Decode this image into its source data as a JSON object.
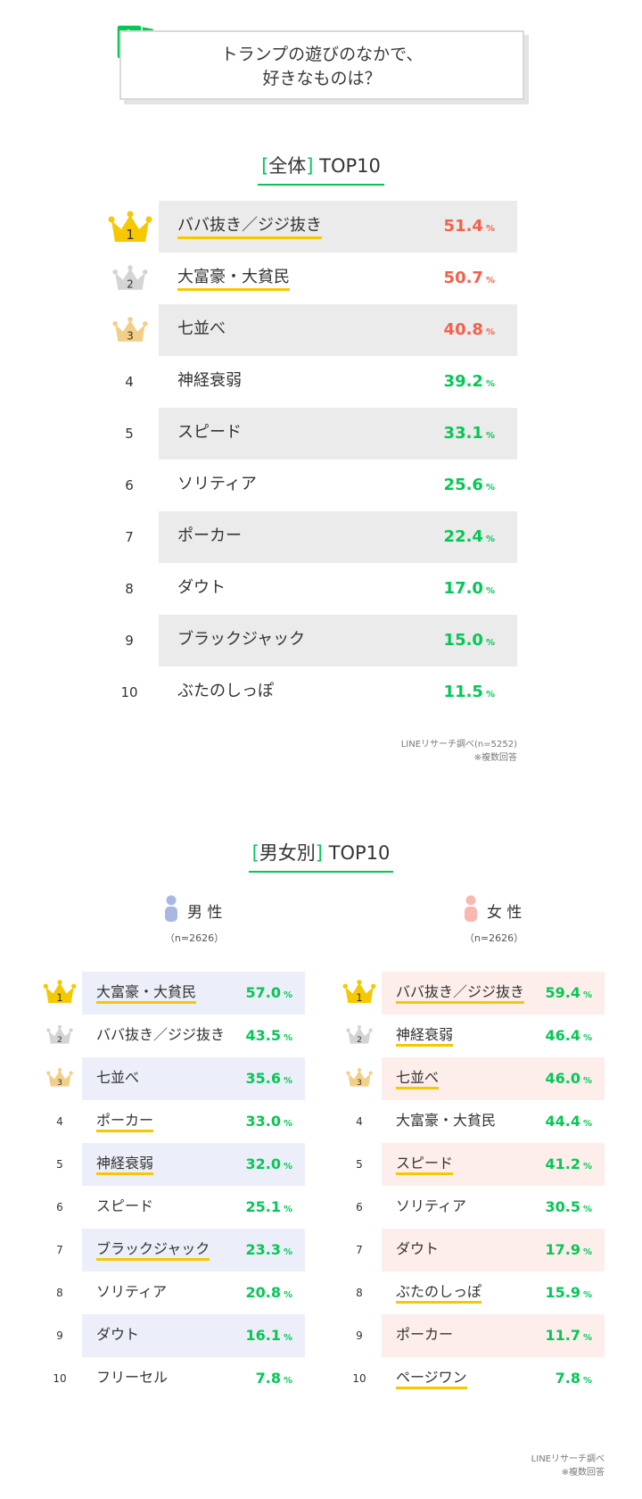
{
  "header": {
    "line1": "トランプの遊びのなかで、",
    "line2": "好きなものは？"
  },
  "colors": {
    "accent": "#06c755",
    "top3": "#f4604b",
    "gold": "#f5c800",
    "male_bg": "#eceff9",
    "female_bg": "#fdeeec",
    "shade": "#ebebeb"
  },
  "overall": {
    "title_open": "[",
    "title_word": "全体",
    "title_close": "]",
    "title_rest": " TOP10",
    "source": "LINEリサーチ調べ(n=5252)",
    "note": "※複数回答",
    "unit": "%"
  },
  "gender": {
    "title_open": "[",
    "title_word": "男女別",
    "title_close": "]",
    "title_rest": " TOP10",
    "male_label": "男 性",
    "male_n": "（n=2626）",
    "female_label": "女 性",
    "female_n": "（n=2626）",
    "source": "LINEリサーチ調べ",
    "note": "※複数回答"
  },
  "chart_data": [
    {
      "type": "table",
      "title": "[全体] TOP10",
      "columns": [
        "rank",
        "item",
        "percent"
      ],
      "rows": [
        [
          "1",
          "ババ抜き／ジジ抜き",
          51.4
        ],
        [
          "2",
          "大富豪・大貧民",
          50.7
        ],
        [
          "3",
          "七並べ",
          40.8
        ],
        [
          "4",
          "神経衰弱",
          39.2
        ],
        [
          "5",
          "スピード",
          33.1
        ],
        [
          "6",
          "ソリティア",
          25.6
        ],
        [
          "7",
          "ポーカー",
          22.4
        ],
        [
          "8",
          "ダウト",
          17.0
        ],
        [
          "9",
          "ブラックジャック",
          15.0
        ],
        [
          "10",
          "ぶたのしっぽ",
          11.5
        ]
      ]
    },
    {
      "type": "table",
      "title": "男 性",
      "columns": [
        "rank",
        "item",
        "percent"
      ],
      "rows": [
        [
          "1",
          "大富豪・大貧民",
          57.0
        ],
        [
          "2",
          "ババ抜き／ジジ抜き",
          43.5
        ],
        [
          "3",
          "七並べ",
          35.6
        ],
        [
          "4",
          "ポーカー",
          33.0
        ],
        [
          "5",
          "神経衰弱",
          32.0
        ],
        [
          "6",
          "スピード",
          25.1
        ],
        [
          "7",
          "ブラックジャック",
          23.3
        ],
        [
          "8",
          "ソリティア",
          20.8
        ],
        [
          "9",
          "ダウト",
          16.1
        ],
        [
          "10",
          "フリーセル",
          7.8
        ]
      ]
    },
    {
      "type": "table",
      "title": "女 性",
      "columns": [
        "rank",
        "item",
        "percent"
      ],
      "rows": [
        [
          "1",
          "ババ抜き／ジジ抜き",
          59.4
        ],
        [
          "2",
          "神経衰弱",
          46.4
        ],
        [
          "3",
          "七並べ",
          46.0
        ],
        [
          "4",
          "大富豪・大貧民",
          44.4
        ],
        [
          "5",
          "スピード",
          41.2
        ],
        [
          "6",
          "ソリティア",
          30.5
        ],
        [
          "7",
          "ダウト",
          17.9
        ],
        [
          "8",
          "ぶたのしっぽ",
          15.9
        ],
        [
          "9",
          "ポーカー",
          11.7
        ],
        [
          "10",
          "ページワン",
          7.8
        ]
      ]
    }
  ]
}
